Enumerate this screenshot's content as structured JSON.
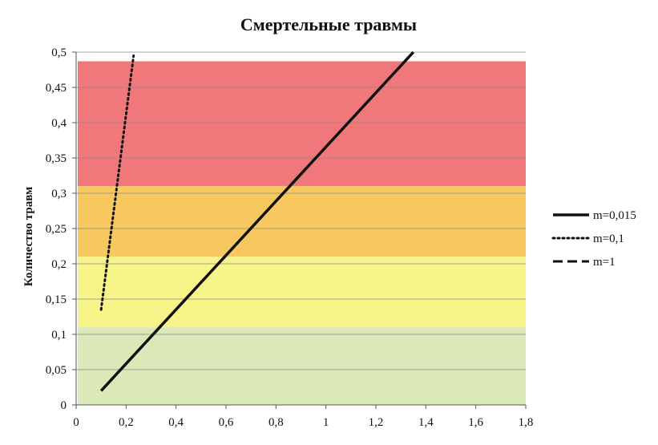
{
  "chart_data": {
    "type": "line",
    "title": "Смертельные травмы",
    "xlabel": "",
    "ylabel": "Количество травм",
    "xlim": [
      0,
      1.8
    ],
    "ylim": [
      0,
      0.5
    ],
    "x_ticks": [
      "0",
      "0,2",
      "0,4",
      "0,6",
      "0,8",
      "1",
      "1,2",
      "1,4",
      "1,6",
      "1,8"
    ],
    "y_ticks": [
      "0",
      "0,05",
      "0,1",
      "0,15",
      "0,2",
      "0,25",
      "0,3",
      "0,35",
      "0,4",
      "0,45",
      "0,5"
    ],
    "grid": "horizontal",
    "legend_position": "right",
    "zones": [
      {
        "color": "#dbe9b8",
        "y_from": 0.0,
        "y_to": 0.11
      },
      {
        "color": "#f7f48a",
        "y_from": 0.11,
        "y_to": 0.21
      },
      {
        "color": "#f7c860",
        "y_from": 0.21,
        "y_to": 0.31
      },
      {
        "color": "#f0787a",
        "y_from": 0.31,
        "y_to": 0.487
      }
    ],
    "series": [
      {
        "name": "m=0,015",
        "style": "solid",
        "points": [
          [
            0.1,
            0.02
          ],
          [
            1.35,
            0.5
          ]
        ]
      },
      {
        "name": "m=0,1",
        "style": "dotted",
        "points": [
          [
            0.1,
            0.135
          ],
          [
            0.23,
            0.495
          ]
        ]
      },
      {
        "name": "m=1",
        "style": "dashed",
        "points": []
      }
    ]
  }
}
